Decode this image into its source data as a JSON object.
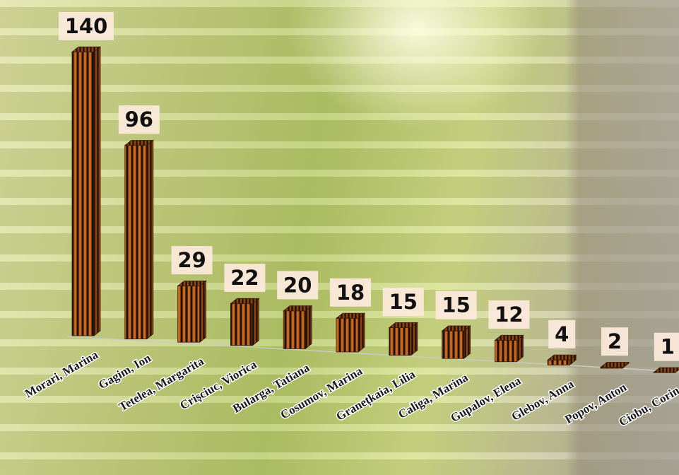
{
  "chart_data": {
    "type": "bar",
    "categories": [
      "Morari, Marina",
      "Gagim, Ion",
      "Tetelea, Margarita",
      "Crişciuc, Viorica",
      "Bularga, Tatiana",
      "Cosumov, Marina",
      "Granețkaia, Lilia",
      "Caliga, Marina",
      "Gupalov, Elena",
      "Glebov, Anna",
      "Popov, Anton",
      "Ciobu, Corin"
    ],
    "values": [
      140,
      96,
      29,
      22,
      20,
      18,
      15,
      15,
      12,
      4,
      2,
      1
    ],
    "color": "#c8651b"
  }
}
